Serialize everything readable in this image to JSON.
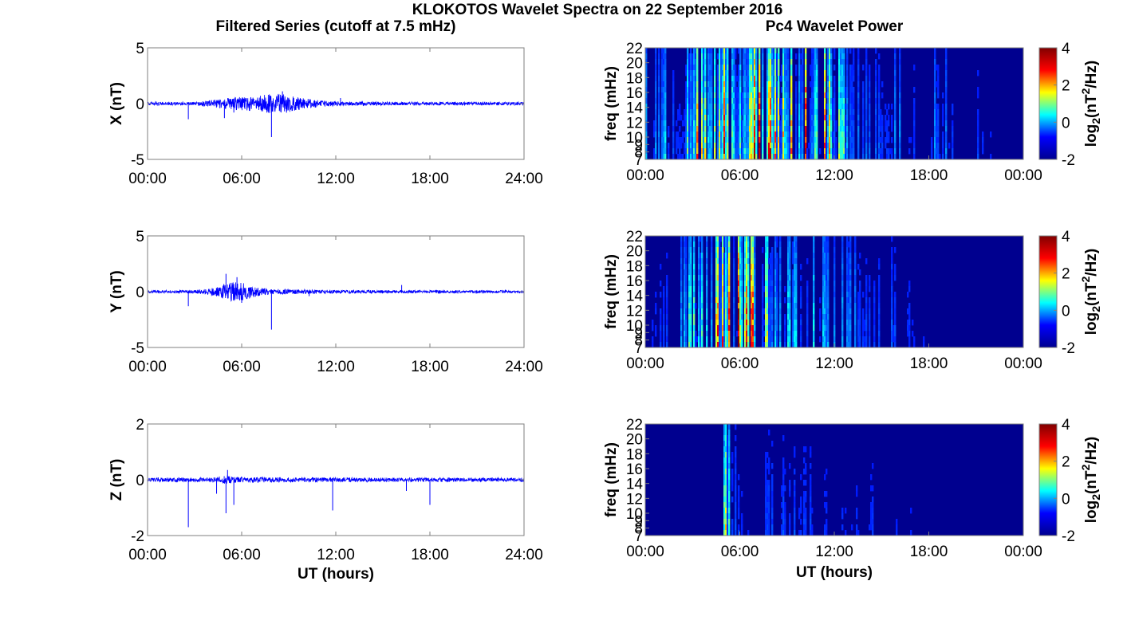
{
  "title": "KLOKOTOS Wavelet Spectra on 22 September 2016",
  "left_column_title": "Filtered Series (cutoff at 7.5 mHz)",
  "right_column_title": "Pc4 Wavelet Power",
  "colors": {
    "trace": "#0000ff",
    "frame": "#7f7f7f",
    "colormap": [
      "#00008f",
      "#0000ff",
      "#00ffff",
      "#ffff00",
      "#ff0000",
      "#800000"
    ]
  },
  "chart_data": [
    {
      "type": "line",
      "panel": "X",
      "ylabel": "X (nT)",
      "xlabel": "",
      "xlim": [
        0,
        24
      ],
      "ylim": [
        -5,
        5
      ],
      "xticks": [
        "00:00",
        "06:00",
        "12:00",
        "18:00",
        "24:00"
      ],
      "yticks": [
        "5",
        "0",
        "-5"
      ],
      "noise_envelope": [
        [
          0,
          0.15
        ],
        [
          3,
          0.15
        ],
        [
          4,
          0.3
        ],
        [
          5,
          0.5
        ],
        [
          6,
          0.6
        ],
        [
          7,
          0.7
        ],
        [
          8,
          0.9
        ],
        [
          9,
          0.8
        ],
        [
          10,
          0.5
        ],
        [
          11,
          0.3
        ],
        [
          12,
          0.2
        ],
        [
          16,
          0.15
        ],
        [
          24,
          0.15
        ]
      ],
      "spikes": [
        [
          2.6,
          -1.4
        ],
        [
          4.9,
          -1.3
        ],
        [
          5.5,
          -0.8
        ],
        [
          7.9,
          -3.0
        ],
        [
          8.6,
          1.1
        ],
        [
          12.3,
          0.5
        ]
      ]
    },
    {
      "type": "line",
      "panel": "Y",
      "ylabel": "Y (nT)",
      "xlabel": "",
      "xlim": [
        0,
        24
      ],
      "ylim": [
        -5,
        5
      ],
      "xticks": [
        "00:00",
        "06:00",
        "12:00",
        "18:00",
        "24:00"
      ],
      "yticks": [
        "5",
        "0",
        "-5"
      ],
      "noise_envelope": [
        [
          0,
          0.12
        ],
        [
          3,
          0.15
        ],
        [
          4,
          0.3
        ],
        [
          5,
          0.7
        ],
        [
          5.5,
          0.9
        ],
        [
          6.2,
          0.8
        ],
        [
          7,
          0.4
        ],
        [
          8,
          0.25
        ],
        [
          12,
          0.15
        ],
        [
          24,
          0.12
        ]
      ],
      "spikes": [
        [
          2.6,
          -1.3
        ],
        [
          5.0,
          1.6
        ],
        [
          5.7,
          1.3
        ],
        [
          6.0,
          -1.0
        ],
        [
          7.9,
          -3.4
        ],
        [
          10.3,
          -0.4
        ],
        [
          16.2,
          0.6
        ]
      ]
    },
    {
      "type": "line",
      "panel": "Z",
      "ylabel": "Z (nT)",
      "xlabel": "UT (hours)",
      "xlim": [
        0,
        24
      ],
      "ylim": [
        -2,
        2
      ],
      "xticks": [
        "00:00",
        "06:00",
        "12:00",
        "18:00",
        "24:00"
      ],
      "yticks": [
        "2",
        "0",
        "-2"
      ],
      "noise_envelope": [
        [
          0,
          0.07
        ],
        [
          4,
          0.09
        ],
        [
          5,
          0.14
        ],
        [
          6,
          0.1
        ],
        [
          12,
          0.08
        ],
        [
          24,
          0.07
        ]
      ],
      "spikes": [
        [
          2.6,
          -1.7
        ],
        [
          4.4,
          -0.5
        ],
        [
          5.0,
          -1.2
        ],
        [
          5.1,
          0.35
        ],
        [
          5.5,
          -0.9
        ],
        [
          11.8,
          -1.1
        ],
        [
          16.5,
          -0.4
        ],
        [
          18.0,
          -0.9
        ]
      ]
    },
    {
      "type": "heatmap",
      "panel": "X",
      "ylabel": "freq (mHz)",
      "xlabel": "",
      "xlim": [
        0,
        24
      ],
      "ylim": [
        7,
        22
      ],
      "xticks": [
        "00:00",
        "06:00",
        "12:00",
        "18:00",
        "00:00"
      ],
      "yticks": [
        "22",
        "20",
        "18",
        "16",
        "14",
        "12",
        "10",
        "9",
        "8",
        "7"
      ],
      "colorbar": {
        "label_base": "log",
        "label_sub": "2",
        "label_open": "(nT",
        "label_sup": "2",
        "label_close": "/Hz)",
        "range": [
          -2,
          4
        ],
        "ticks": [
          "4",
          "2",
          "0",
          "-2"
        ]
      },
      "activity": [
        [
          0,
          1.3
        ],
        [
          1,
          0.9
        ],
        [
          2,
          1.0
        ],
        [
          3,
          1.9
        ],
        [
          4,
          2.3
        ],
        [
          5,
          2.6
        ],
        [
          6,
          2.6
        ],
        [
          7,
          3.0
        ],
        [
          8,
          3.2
        ],
        [
          9,
          3.1
        ],
        [
          10,
          2.6
        ],
        [
          11,
          2.6
        ],
        [
          12,
          1.7
        ],
        [
          13,
          0.7
        ],
        [
          15,
          0.4
        ],
        [
          16,
          0.6
        ],
        [
          17,
          0.3
        ],
        [
          19,
          0.8
        ],
        [
          20,
          0.4
        ],
        [
          24,
          0.0
        ]
      ]
    },
    {
      "type": "heatmap",
      "panel": "Y",
      "ylabel": "freq (mHz)",
      "xlabel": "",
      "xlim": [
        0,
        24
      ],
      "ylim": [
        7,
        22
      ],
      "xticks": [
        "00:00",
        "06:00",
        "12:00",
        "18:00",
        "00:00"
      ],
      "yticks": [
        "22",
        "20",
        "18",
        "16",
        "14",
        "12",
        "10",
        "9",
        "8",
        "7"
      ],
      "colorbar": {
        "label_base": "log",
        "label_sub": "2",
        "label_open": "(nT",
        "label_sup": "2",
        "label_close": "/Hz)",
        "range": [
          -2,
          4
        ],
        "ticks": [
          "4",
          "2",
          "0",
          "-2"
        ]
      },
      "activity": [
        [
          0,
          0.3
        ],
        [
          2,
          0.4
        ],
        [
          3,
          1.2
        ],
        [
          4,
          1.9
        ],
        [
          5,
          2.9
        ],
        [
          5.7,
          3.4
        ],
        [
          6.5,
          3.0
        ],
        [
          7,
          2.2
        ],
        [
          8,
          1.5
        ],
        [
          9,
          1.2
        ],
        [
          10,
          1.0
        ],
        [
          12,
          0.8
        ],
        [
          14,
          0.4
        ],
        [
          16,
          0.6
        ],
        [
          17,
          0.2
        ],
        [
          24,
          0.0
        ]
      ]
    },
    {
      "type": "heatmap",
      "panel": "Z",
      "ylabel": "freq (mHz)",
      "xlabel": "UT (hours)",
      "xlim": [
        0,
        24
      ],
      "ylim": [
        7,
        22
      ],
      "xticks": [
        "00:00",
        "06:00",
        "12:00",
        "18:00",
        "00:00"
      ],
      "yticks": [
        "22",
        "20",
        "18",
        "16",
        "14",
        "12",
        "10",
        "9",
        "8",
        "7"
      ],
      "colorbar": {
        "label_base": "log",
        "label_sub": "2",
        "label_open": "(nT",
        "label_sup": "2",
        "label_close": "/Hz)",
        "range": [
          -2,
          4
        ],
        "ticks": [
          "4",
          "2",
          "0",
          "-2"
        ]
      },
      "activity": [
        [
          0,
          0.0
        ],
        [
          5,
          0.05
        ],
        [
          5.0,
          2.0
        ],
        [
          5.1,
          1.6
        ],
        [
          6,
          0.2
        ],
        [
          8.5,
          0.4
        ],
        [
          12,
          0.3
        ],
        [
          16,
          0.2
        ],
        [
          24,
          0.0
        ]
      ]
    }
  ]
}
